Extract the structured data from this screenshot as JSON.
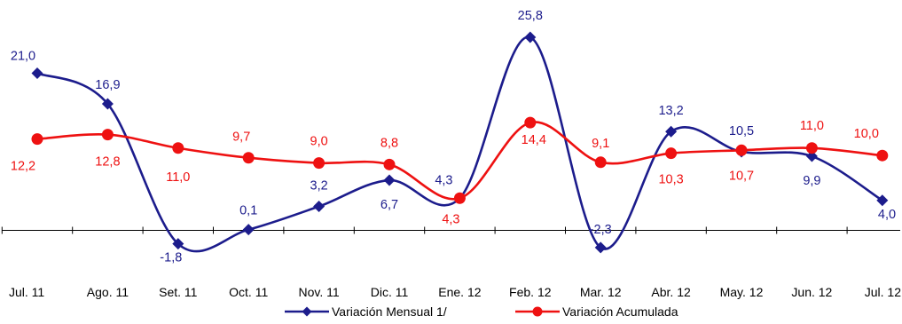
{
  "chart_data": {
    "type": "line",
    "categories": [
      "Jul. 11",
      "Ago. 11",
      "Set. 11",
      "Oct. 11",
      "Nov. 11",
      "Dic. 11",
      "Ene. 12",
      "Feb. 12",
      "Mar. 12",
      "Abr. 12",
      "May. 12",
      "Jun. 12",
      "Jul. 12"
    ],
    "series": [
      {
        "name": "Variación Mensual 1/",
        "color": "#1c1c8c",
        "marker": "diamond",
        "values": [
          21.0,
          16.9,
          -1.8,
          0.1,
          3.2,
          6.7,
          4.3,
          25.8,
          -2.3,
          13.2,
          10.5,
          9.9,
          4.0
        ],
        "labels": [
          "21,0",
          "16,9",
          "-1,8",
          "0,1",
          "3,2",
          "6,7",
          "4,3",
          "25,8",
          "-2,3",
          "13,2",
          "10,5",
          "9,9",
          "4,0"
        ]
      },
      {
        "name": "Variación Acumulada",
        "color": "#ee1111",
        "marker": "circle",
        "values": [
          12.2,
          12.8,
          11.0,
          9.7,
          9.0,
          8.8,
          4.3,
          14.4,
          9.1,
          10.3,
          10.7,
          11.0,
          10.0
        ],
        "labels": [
          "12,2",
          "12,8",
          "11,0",
          "9,7",
          "9,0",
          "8,8",
          "4,3",
          "14,4",
          "9,1",
          "10,3",
          "10,7",
          "11,0",
          "10,0"
        ]
      }
    ],
    "smooth": true,
    "grid": false,
    "legend_position": "bottom"
  }
}
